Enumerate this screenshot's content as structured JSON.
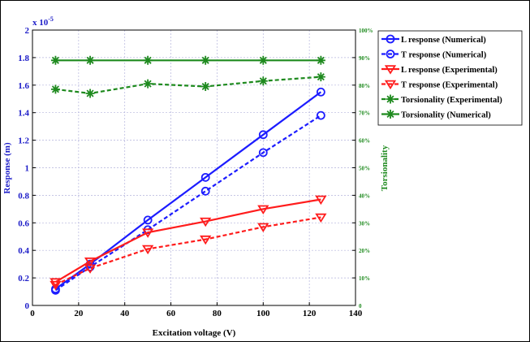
{
  "chart_data": {
    "type": "line",
    "xlabel": "Excitation voltage (V)",
    "ylabel": "Response (m)",
    "ylabel_right": "Torsionality",
    "y_exponent": "x 10",
    "y_exponent_power": "-5",
    "xlim": [
      0,
      140
    ],
    "ylim": [
      0,
      2
    ],
    "ylim_right": [
      0,
      100
    ],
    "x_ticks": [
      "0",
      "20",
      "40",
      "60",
      "80",
      "100",
      "120",
      "140"
    ],
    "y_ticks": [
      "0",
      "0.2",
      "0.4",
      "0.6",
      "0.8",
      "1",
      "1.2",
      "1.4",
      "1.6",
      "1.8",
      "2"
    ],
    "y_right_ticks": [
      "0",
      "10%",
      "20%",
      "30%",
      "40%",
      "50%",
      "60%",
      "70%",
      "80%",
      "90%",
      "100%"
    ],
    "grid": true,
    "legend_position": "top-right",
    "x": [
      10,
      25,
      50,
      75,
      100,
      125
    ],
    "series": [
      {
        "name": "L response (Numerical)",
        "axis": "left",
        "color": "#1c1cff",
        "dash": "solid",
        "marker": "circle",
        "values": [
          0.12,
          0.3,
          0.62,
          0.93,
          1.24,
          1.55
        ]
      },
      {
        "name": "T response (Numerical)",
        "axis": "left",
        "color": "#1c1cff",
        "dash": "dashed",
        "marker": "circle",
        "values": [
          0.11,
          0.28,
          0.55,
          0.83,
          1.11,
          1.38
        ]
      },
      {
        "name": "L response (Experimental)",
        "axis": "left",
        "color": "#ff1c1c",
        "dash": "solid",
        "marker": "triangle",
        "values": [
          0.17,
          0.32,
          0.53,
          0.61,
          0.7,
          0.77
        ]
      },
      {
        "name": "T response (Experimental)",
        "axis": "left",
        "color": "#ff1c1c",
        "dash": "dashed",
        "marker": "triangle",
        "values": [
          0.15,
          0.27,
          0.41,
          0.48,
          0.57,
          0.64
        ]
      },
      {
        "name": "Torsionality (Experimental)",
        "axis": "right",
        "color": "#1e8a1e",
        "dash": "dashed",
        "marker": "asterisk",
        "values": [
          78.5,
          77,
          80.5,
          79.5,
          81.5,
          83
        ]
      },
      {
        "name": "Torsionality (Numerical)",
        "axis": "right",
        "color": "#1e8a1e",
        "dash": "solid",
        "marker": "asterisk",
        "values": [
          89,
          89,
          89,
          89,
          89,
          89
        ]
      }
    ]
  }
}
